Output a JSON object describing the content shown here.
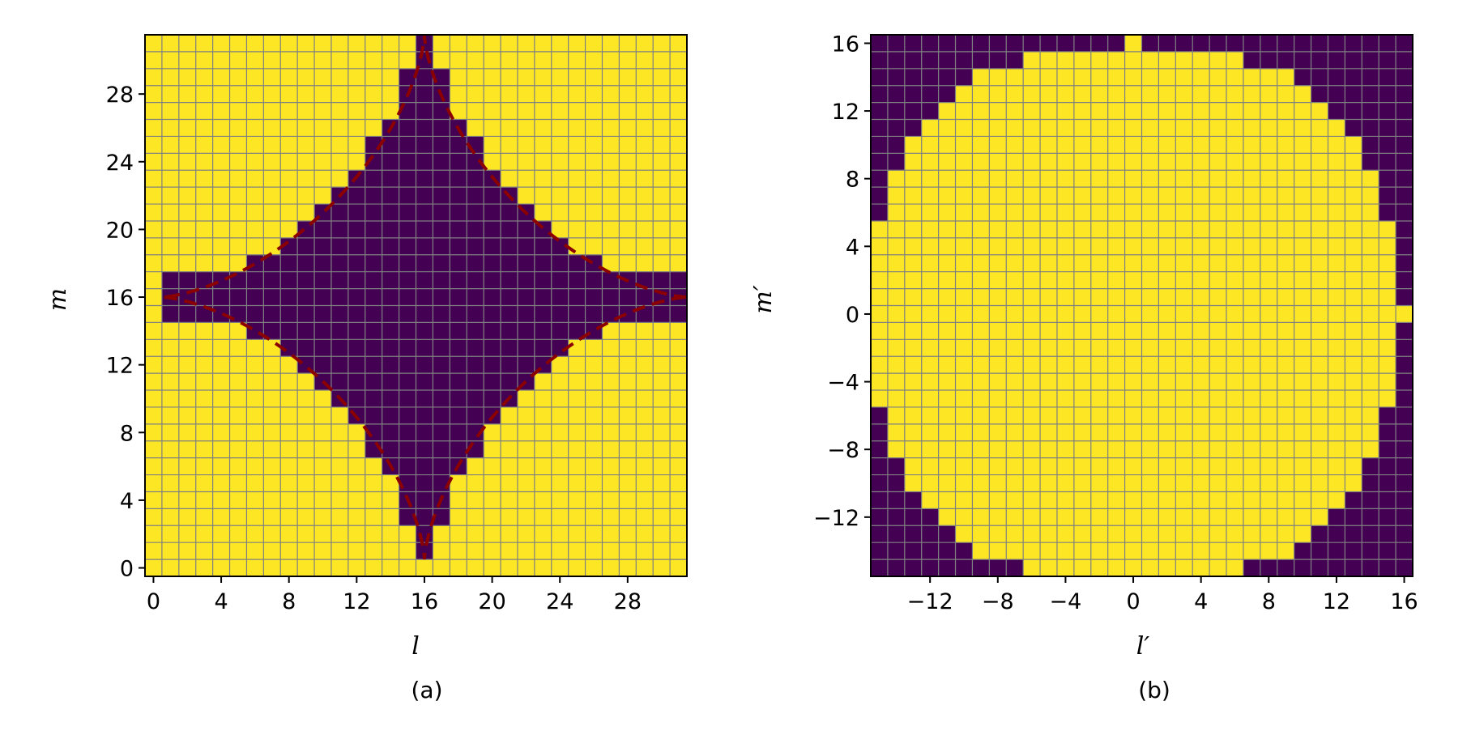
{
  "chart_data": [
    {
      "type": "heatmap",
      "caption": "(a)",
      "xlabel": "l",
      "ylabel": "m",
      "x_ticks": [
        0,
        4,
        8,
        12,
        16,
        20,
        24,
        28
      ],
      "y_ticks": [
        0,
        4,
        8,
        12,
        16,
        20,
        24,
        28
      ],
      "x_tick_labels": [
        "0",
        "4",
        "8",
        "12",
        "16",
        "20",
        "24",
        "28"
      ],
      "y_tick_labels": [
        "0",
        "4",
        "8",
        "12",
        "16",
        "20",
        "24",
        "28"
      ],
      "grid_size": 32,
      "x_range": [
        0,
        31
      ],
      "y_range": [
        0,
        31
      ],
      "colors": {
        "low": "#440154",
        "high": "#fde725",
        "grid": "#808080",
        "curve": "#8b0000"
      },
      "center": [
        16,
        16
      ],
      "inside_half_widths_by_offset": [
        15,
        15,
        10,
        8,
        7,
        6,
        5,
        4,
        3,
        3,
        2,
        1,
        1,
        1,
        0,
        0
      ],
      "inside_value": "low",
      "curve_style": "dashed",
      "curve_extent": [
        0.5,
        31.5
      ],
      "grid": true
    },
    {
      "type": "heatmap",
      "caption": "(b)",
      "xlabel": "l′",
      "ylabel": "m′",
      "x_ticks": [
        -12,
        -8,
        -4,
        0,
        4,
        8,
        12,
        16
      ],
      "y_ticks": [
        -12,
        -8,
        -4,
        0,
        4,
        8,
        12,
        16
      ],
      "x_tick_labels": [
        "−12",
        "−8",
        "−4",
        "0",
        "4",
        "8",
        "12",
        "16"
      ],
      "y_tick_labels": [
        "−12",
        "−8",
        "−4",
        "0",
        "4",
        "8",
        "12",
        "16"
      ],
      "grid_size": 32,
      "x_range": [
        -15,
        16
      ],
      "y_range": [
        -15,
        16
      ],
      "colors": {
        "low": "#440154",
        "high": "#fde725",
        "grid": "#808080"
      },
      "inside_half_widths_by_offset": [
        15,
        15,
        15,
        15,
        15,
        15,
        14,
        14,
        14,
        13,
        13,
        12,
        11,
        10,
        9,
        6
      ],
      "row_16_high_columns": [
        0
      ],
      "column_16_high_rows": [
        0
      ],
      "inside_value": "high",
      "grid": true
    }
  ]
}
